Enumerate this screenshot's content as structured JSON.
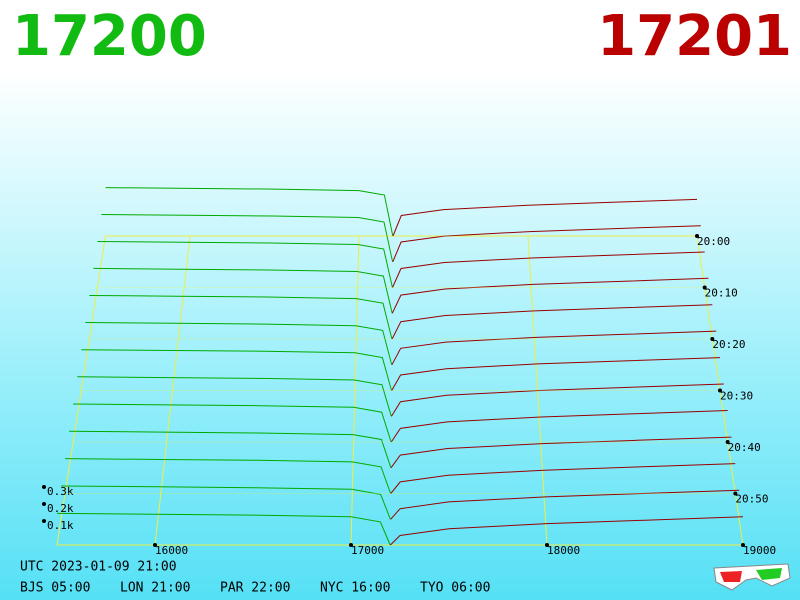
{
  "chart_data": {
    "type": "depth3d",
    "best_bid": 17200,
    "best_ask": 17201,
    "bid_color": "#00aa00",
    "ask_color": "#990000",
    "bid_title_color": "#11bb11",
    "ask_title_color": "#bb0000",
    "bid_prices": [
      15500,
      16000,
      16500,
      17000,
      17150,
      17200
    ],
    "ask_prices": [
      17201,
      17250,
      17500,
      18000,
      18500,
      19000
    ],
    "layers": [
      {
        "bids": [
          330,
          325,
          320,
          310,
          280,
          0
        ],
        "asks": [
          0,
          140,
          180,
          210,
          230,
          250
        ]
      },
      {
        "bids": [
          318,
          313,
          308,
          298,
          268,
          0
        ],
        "asks": [
          0,
          133,
          173,
          203,
          223,
          243
        ]
      },
      {
        "bids": [
          306,
          301,
          296,
          286,
          256,
          0
        ],
        "asks": [
          0,
          126,
          166,
          196,
          216,
          236
        ]
      },
      {
        "bids": [
          294,
          289,
          284,
          274,
          244,
          0
        ],
        "asks": [
          0,
          119,
          159,
          189,
          209,
          229
        ]
      },
      {
        "bids": [
          282,
          277,
          272,
          262,
          232,
          0
        ],
        "asks": [
          0,
          112,
          152,
          182,
          202,
          222
        ]
      },
      {
        "bids": [
          270,
          265,
          260,
          250,
          220,
          0
        ],
        "asks": [
          0,
          105,
          145,
          175,
          195,
          215
        ]
      },
      {
        "bids": [
          258,
          253,
          248,
          238,
          208,
          0
        ],
        "asks": [
          0,
          98,
          138,
          168,
          188,
          208
        ]
      },
      {
        "bids": [
          246,
          241,
          236,
          226,
          196,
          0
        ],
        "asks": [
          0,
          91,
          131,
          161,
          181,
          201
        ]
      },
      {
        "bids": [
          234,
          229,
          224,
          214,
          184,
          0
        ],
        "asks": [
          0,
          84,
          124,
          154,
          174,
          194
        ]
      },
      {
        "bids": [
          222,
          217,
          212,
          202,
          172,
          0
        ],
        "asks": [
          0,
          77,
          117,
          147,
          167,
          187
        ]
      },
      {
        "bids": [
          210,
          205,
          200,
          190,
          160,
          0
        ],
        "asks": [
          0,
          70,
          110,
          140,
          160,
          180
        ]
      },
      {
        "bids": [
          198,
          193,
          188,
          178,
          148,
          0
        ],
        "asks": [
          0,
          63,
          103,
          133,
          153,
          173
        ]
      },
      {
        "bids": [
          186,
          181,
          176,
          166,
          136,
          0
        ],
        "asks": [
          0,
          56,
          96,
          126,
          146,
          166
        ]
      }
    ],
    "xlim": [
      15500,
      19000
    ],
    "xticks": [
      16000,
      17000,
      18000,
      19000
    ],
    "ylim": [
      0,
      400
    ],
    "yticks": [
      {
        "value": 100,
        "label": "0.1k"
      },
      {
        "value": 200,
        "label": "0.2k"
      },
      {
        "value": 300,
        "label": "0.3k"
      }
    ],
    "zticks": [
      {
        "value": 0,
        "label": "20:00"
      },
      {
        "value": 2,
        "label": "20:10"
      },
      {
        "value": 4,
        "label": "20:20"
      },
      {
        "value": 6,
        "label": "20:30"
      },
      {
        "value": 8,
        "label": "20:40"
      },
      {
        "value": 10,
        "label": "20:50"
      }
    ],
    "grid_color": "#eeee44",
    "footer": {
      "utc": "UTC 2023-01-09 21:00",
      "cities": [
        "BJS 05:00",
        "LON 21:00",
        "PAR 22:00",
        "NYC 16:00",
        "TYO 06:00"
      ]
    }
  }
}
